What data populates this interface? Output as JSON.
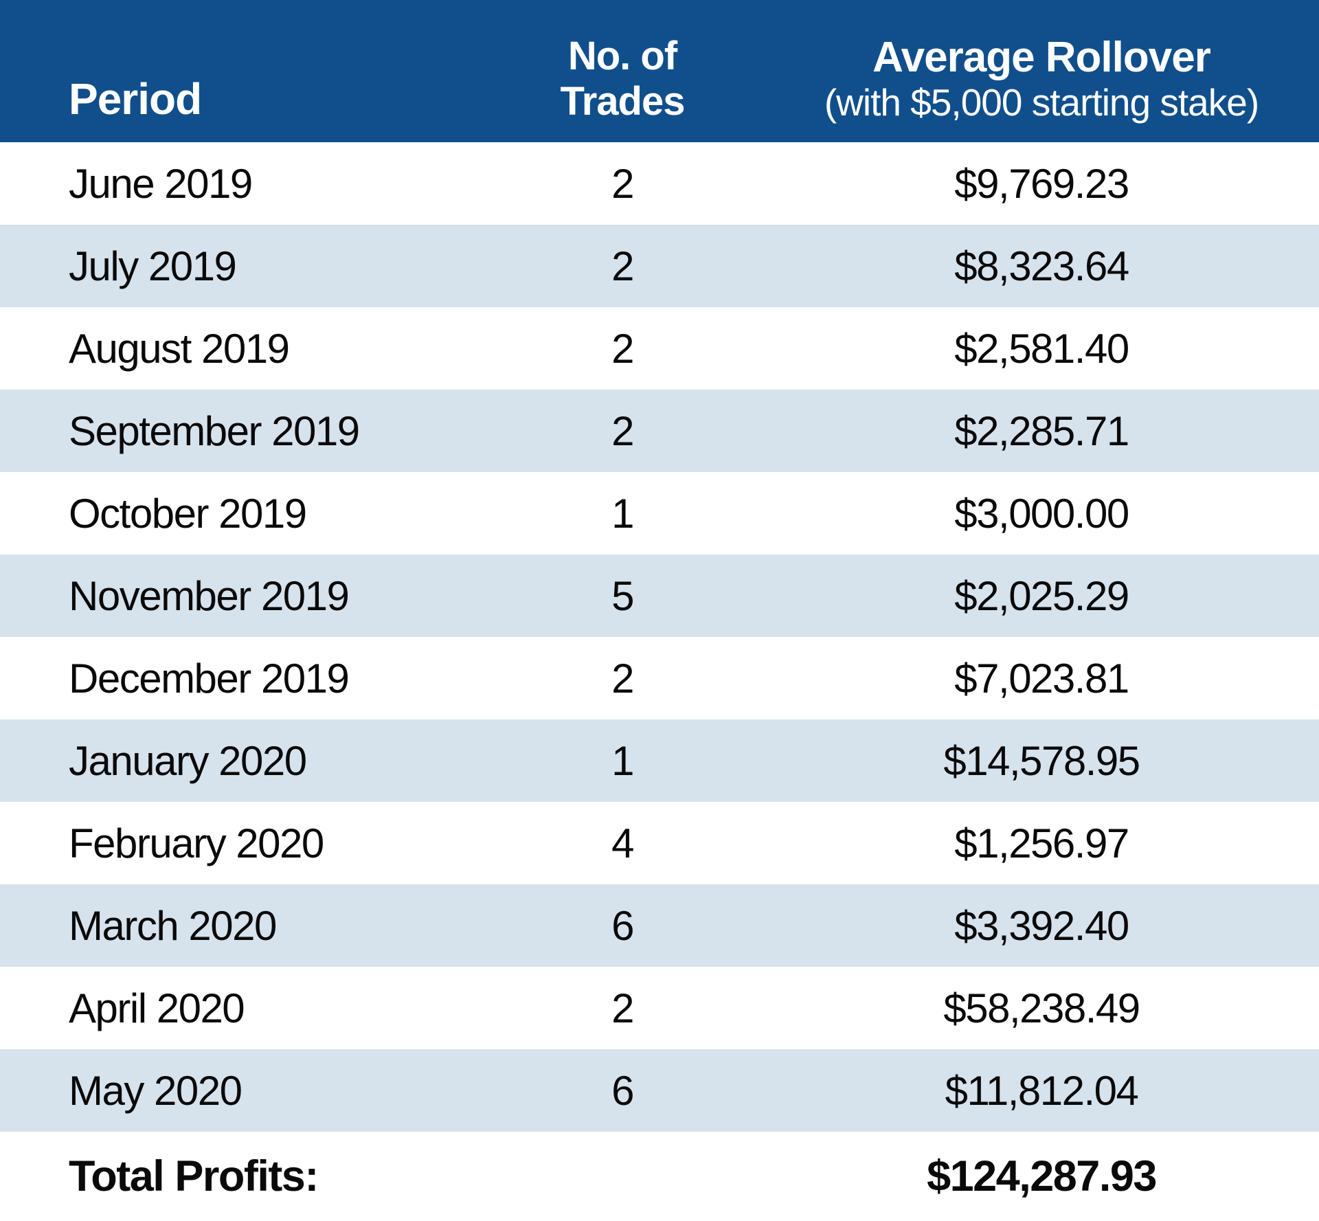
{
  "colors": {
    "header_bg": "#114F8C",
    "header_text": "#FFFFFF",
    "row_alt_bg": "#D6E2EC",
    "body_text": "#0A0A0A"
  },
  "chart_data": {
    "type": "table",
    "columns": [
      "Period",
      "No. of Trades",
      "Average Rollover (with $5,000 starting stake)"
    ],
    "header": {
      "period": "Period",
      "trades_line1": "No. of",
      "trades_line2": "Trades",
      "rollover_line1": "Average Rollover",
      "rollover_line2": "(with $5,000 starting stake)"
    },
    "rows": [
      {
        "period": "June 2019",
        "trades": "2",
        "rollover": "$9,769.23"
      },
      {
        "period": "July 2019",
        "trades": "2",
        "rollover": "$8,323.64"
      },
      {
        "period": "August 2019",
        "trades": "2",
        "rollover": "$2,581.40"
      },
      {
        "period": "September 2019",
        "trades": "2",
        "rollover": "$2,285.71"
      },
      {
        "period": "October 2019",
        "trades": "1",
        "rollover": "$3,000.00"
      },
      {
        "period": "November 2019",
        "trades": "5",
        "rollover": "$2,025.29"
      },
      {
        "period": "December 2019",
        "trades": "2",
        "rollover": "$7,023.81"
      },
      {
        "period": "January 2020",
        "trades": "1",
        "rollover": "$14,578.95"
      },
      {
        "period": "February 2020",
        "trades": "4",
        "rollover": "$1,256.97"
      },
      {
        "period": "March 2020",
        "trades": "6",
        "rollover": "$3,392.40"
      },
      {
        "period": "April 2020",
        "trades": "2",
        "rollover": "$58,238.49"
      },
      {
        "period": "May 2020",
        "trades": "6",
        "rollover": "$11,812.04"
      }
    ],
    "footer": {
      "label": "Total Profits:",
      "value": "$124,287.93"
    }
  }
}
